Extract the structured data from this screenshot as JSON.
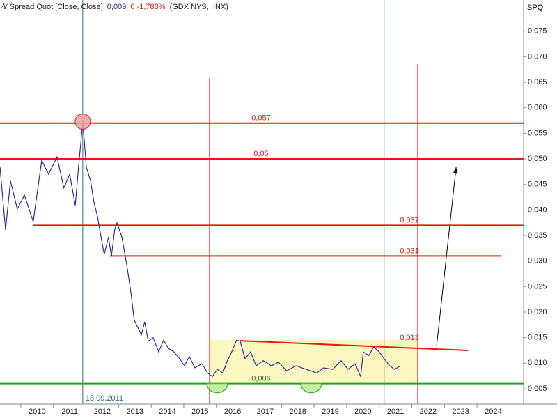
{
  "chart_data": {
    "type": "line",
    "header": {
      "name": "Spread Quot [Close, Close]",
      "last": "0,009",
      "change": "0 -1,783%",
      "symbols": "(GDX NYS, .INX)"
    },
    "y_axis_label": "SPQ",
    "xlim": [
      2009.36,
      2025.43
    ],
    "xticks": [
      {
        "value": 2010,
        "label": "2010"
      },
      {
        "value": 2011,
        "label": "2011"
      },
      {
        "value": 2012,
        "label": "2012"
      },
      {
        "value": 2013,
        "label": "2013"
      },
      {
        "value": 2014,
        "label": "2014"
      },
      {
        "value": 2015,
        "label": "2015"
      },
      {
        "value": 2016,
        "label": "2016"
      },
      {
        "value": 2017,
        "label": "2017"
      },
      {
        "value": 2018,
        "label": "2018"
      },
      {
        "value": 2019,
        "label": "2019"
      },
      {
        "value": 2020,
        "label": "2020"
      },
      {
        "value": 2021,
        "label": "2021"
      },
      {
        "value": 2022,
        "label": "2022"
      },
      {
        "value": 2023,
        "label": "2023"
      },
      {
        "value": 2024,
        "label": "2024"
      }
    ],
    "ylim": [
      0.002,
      0.0811
    ],
    "yticks": [
      {
        "value": 0.005,
        "label": "0,005"
      },
      {
        "value": 0.01,
        "label": "0,010"
      },
      {
        "value": 0.015,
        "label": "0,015"
      },
      {
        "value": 0.02,
        "label": "0,020"
      },
      {
        "value": 0.025,
        "label": "0,025"
      },
      {
        "value": 0.03,
        "label": "0,030"
      },
      {
        "value": 0.035,
        "label": "0,035"
      },
      {
        "value": 0.04,
        "label": "0,040"
      },
      {
        "value": 0.045,
        "label": "0,045"
      },
      {
        "value": 0.05,
        "label": "0,050"
      },
      {
        "value": 0.055,
        "label": "0,055"
      },
      {
        "value": 0.06,
        "label": "0,060"
      },
      {
        "value": 0.065,
        "label": "0,065"
      },
      {
        "value": 0.07,
        "label": "0,070"
      },
      {
        "value": 0.075,
        "label": "0,075"
      }
    ],
    "series": [
      {
        "color": "#1c1ca8",
        "x": [
          2009.36,
          2009.53,
          2009.68,
          2009.89,
          2010.11,
          2010.38,
          2010.64,
          2010.85,
          2011.11,
          2011.32,
          2011.5,
          2011.67,
          2011.77,
          2011.9,
          2012.01,
          2012.14,
          2012.24,
          2012.35,
          2012.46,
          2012.56,
          2012.69,
          2012.78,
          2012.88,
          2012.95,
          2013.1,
          2013.25,
          2013.38,
          2013.48,
          2013.59,
          2013.7,
          2013.8,
          2013.91,
          2014.06,
          2014.23,
          2014.38,
          2014.53,
          2014.7,
          2014.87,
          2015.02,
          2015.17,
          2015.34,
          2015.56,
          2015.73,
          2015.88,
          2016.03,
          2016.2,
          2016.32,
          2016.47,
          2016.62,
          2016.73,
          2016.88,
          2017.05,
          2017.22,
          2017.44,
          2017.69,
          2017.91,
          2018.16,
          2018.44,
          2018.76,
          2019.08,
          2019.29,
          2019.57,
          2019.83,
          2020.04,
          2020.26,
          2020.43,
          2020.51,
          2020.68,
          2020.83,
          2021.0,
          2021.15,
          2021.32,
          2021.47,
          2021.65
        ],
        "values": [
          0.0484,
          0.0361,
          0.0457,
          0.0402,
          0.0429,
          0.0377,
          0.0497,
          0.047,
          0.0504,
          0.0443,
          0.047,
          0.0409,
          0.0484,
          0.0573,
          0.0484,
          0.0457,
          0.0416,
          0.0388,
          0.0347,
          0.0313,
          0.0347,
          0.0309,
          0.0361,
          0.0375,
          0.0347,
          0.0293,
          0.0238,
          0.0184,
          0.017,
          0.0156,
          0.0181,
          0.0143,
          0.015,
          0.0122,
          0.0145,
          0.0129,
          0.0122,
          0.0109,
          0.0095,
          0.0113,
          0.0091,
          0.0099,
          0.0081,
          0.0074,
          0.0088,
          0.0081,
          0.0102,
          0.0122,
          0.0145,
          0.0143,
          0.0109,
          0.0122,
          0.0095,
          0.0105,
          0.0095,
          0.0102,
          0.0085,
          0.0095,
          0.0088,
          0.0081,
          0.0091,
          0.0088,
          0.0105,
          0.0088,
          0.0099,
          0.0074,
          0.0122,
          0.0115,
          0.0132,
          0.0122,
          0.0109,
          0.0095,
          0.0088,
          0.0095
        ]
      }
    ],
    "horizontal_lines": [
      {
        "value": 0.057,
        "label": "0,057",
        "color": "#e8170f",
        "x_start": 2009.36
      },
      {
        "value": 0.05,
        "label": "0,05",
        "color": "#e8170f",
        "x_start": 2009.36
      },
      {
        "value": 0.037,
        "label": "0,037",
        "color": "#e8170f",
        "x_start": 2010.38
      },
      {
        "value": 0.031,
        "label": "0,031",
        "color": "#e8170f",
        "x_start": 2012.73,
        "x_end": 2024.73
      },
      {
        "value": 0.006,
        "label": "0,006",
        "color": "#22a022",
        "x_start": 2009.36
      }
    ],
    "trend_line": {
      "x": [
        2016.73,
        2023.72
      ],
      "values": [
        0.0144,
        0.0125
      ],
      "label": "0,013",
      "color": "#e8170f"
    },
    "vertical_lines": [
      {
        "x": 2011.9,
        "color": "#2f6f8f",
        "label": "18.09.2011"
      },
      {
        "x": 2021.15,
        "color": "#2f6f8f"
      },
      {
        "x": 2015.79,
        "color": "#e8170f",
        "y_top": 0.0658
      },
      {
        "x": 2022.18,
        "color": "#e8170f",
        "y_top": 0.0685
      }
    ],
    "zone": {
      "x": [
        2015.79,
        2022.18
      ],
      "values": [
        0.006,
        0.0146
      ],
      "color": "#fbf5b4"
    },
    "arrow": {
      "x": [
        2022.76,
        2023.36
      ],
      "values": [
        0.0133,
        0.0484
      ]
    }
  }
}
